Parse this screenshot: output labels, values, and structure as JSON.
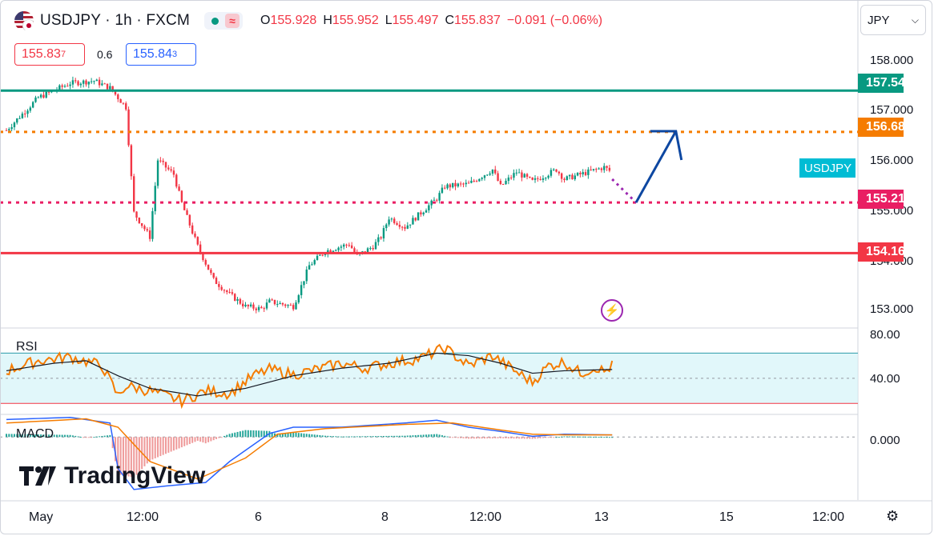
{
  "header": {
    "symbol": "USDJPY",
    "interval": "1h",
    "source": "FXCM",
    "open_label": "O",
    "open": "155.928",
    "high_label": "H",
    "high": "155.952",
    "low_label": "L",
    "low": "155.497",
    "close_label": "C",
    "close": "155.837",
    "change": "−0.091 (−0.06%)",
    "sell_price": "155.83",
    "sell_price_small": "7",
    "buy_price": "155.84",
    "buy_price_small": "3",
    "spread": "0.6",
    "currency": "JPY",
    "status_live": "market-open-dot",
    "status_icon": "≈"
  },
  "colors": {
    "up": "#089981",
    "down": "#f23645",
    "teal_level": "#089981",
    "orange_level": "#f57c00",
    "pink_level": "#e91e63",
    "red_level": "#f23645",
    "arrow": "#0d47a1",
    "rsi": "#f57c00",
    "rsi_band": "#d4f3f8"
  },
  "chart_data": [
    {
      "type": "candlestick",
      "title": "USDJPY · 1h · FXCM",
      "ylim": [
        152.6,
        158.6
      ],
      "y_ticks": [
        "158.000",
        "157.000",
        "156.000",
        "155.000",
        "154.000",
        "153.000"
      ],
      "x_ticks": [
        "May",
        "12:00",
        "6",
        "8",
        "12:00",
        "13",
        "15",
        "12:00"
      ],
      "close_path": [
        [
          0,
          156.72
        ],
        [
          4,
          157.4
        ],
        [
          8,
          157.7
        ],
        [
          11,
          157.75
        ],
        [
          13,
          157.6
        ],
        [
          15,
          157.2
        ],
        [
          16,
          155.0
        ],
        [
          18,
          154.5
        ],
        [
          19,
          156.1
        ],
        [
          21,
          155.8
        ],
        [
          22,
          155.2
        ],
        [
          24,
          154.3
        ],
        [
          26,
          153.6
        ],
        [
          28,
          153.3
        ],
        [
          30,
          153.05
        ],
        [
          32,
          153.0
        ],
        [
          33,
          153.15
        ],
        [
          36,
          153.05
        ],
        [
          38,
          153.9
        ],
        [
          40,
          154.2
        ],
        [
          43,
          154.35
        ],
        [
          44,
          154.1
        ],
        [
          46,
          154.3
        ],
        [
          47,
          154.5
        ],
        [
          48,
          154.9
        ],
        [
          50,
          154.7
        ],
        [
          52,
          155.0
        ],
        [
          54,
          155.3
        ],
        [
          55,
          155.55
        ],
        [
          58,
          155.6
        ],
        [
          61,
          155.9
        ],
        [
          62,
          155.55
        ],
        [
          64,
          155.85
        ],
        [
          66,
          155.65
        ],
        [
          69,
          155.9
        ],
        [
          70,
          155.7
        ],
        [
          73,
          155.85
        ],
        [
          75,
          155.95
        ],
        [
          76,
          155.84
        ]
      ],
      "levels": [
        {
          "name": "teal-level",
          "value": 157.545,
          "label": "157.545",
          "style": "solid"
        },
        {
          "name": "orange-level",
          "value": 156.685,
          "label": "156.685",
          "style": "dotted"
        },
        {
          "name": "pink-level",
          "value": 155.214,
          "label": "155.214",
          "style": "dotted"
        },
        {
          "name": "red-level",
          "value": 154.16,
          "label": "154.160",
          "style": "solid"
        }
      ],
      "symbol_tag": "USDJPY",
      "forecast": {
        "from": [
          76,
          155.7
        ],
        "via": [
          79,
          155.214
        ],
        "to": [
          84,
          156.7
        ],
        "to_tip": [
          85,
          156.1
        ]
      }
    },
    {
      "type": "line",
      "name": "RSI",
      "ylim": [
        20,
        90
      ],
      "y_ticks": [
        "80.00",
        "40.00"
      ],
      "band": [
        70,
        30
      ],
      "series_rsi": [
        [
          0,
          56
        ],
        [
          4,
          64
        ],
        [
          8,
          67
        ],
        [
          12,
          60
        ],
        [
          14,
          36
        ],
        [
          15,
          44
        ],
        [
          18,
          40
        ],
        [
          20,
          36
        ],
        [
          22,
          32
        ],
        [
          25,
          40
        ],
        [
          28,
          38
        ],
        [
          31,
          52
        ],
        [
          33,
          57
        ],
        [
          36,
          53
        ],
        [
          39,
          57
        ],
        [
          42,
          62
        ],
        [
          45,
          58
        ],
        [
          48,
          62
        ],
        [
          52,
          66
        ],
        [
          55,
          74
        ],
        [
          58,
          60
        ],
        [
          61,
          68
        ],
        [
          64,
          55
        ],
        [
          66,
          47
        ],
        [
          68,
          60
        ],
        [
          70,
          63
        ],
        [
          72,
          54
        ],
        [
          74,
          59
        ],
        [
          75,
          55
        ],
        [
          76,
          60
        ]
      ],
      "series_ma": [
        [
          0,
          56
        ],
        [
          6,
          62
        ],
        [
          10,
          64
        ],
        [
          14,
          52
        ],
        [
          18,
          42
        ],
        [
          24,
          36
        ],
        [
          30,
          42
        ],
        [
          36,
          52
        ],
        [
          42,
          58
        ],
        [
          48,
          62
        ],
        [
          54,
          70
        ],
        [
          58,
          68
        ],
        [
          62,
          62
        ],
        [
          66,
          54
        ],
        [
          70,
          56
        ],
        [
          76,
          57
        ]
      ]
    },
    {
      "type": "bar",
      "name": "MACD",
      "ylim": [
        -0.9,
        0.3
      ],
      "y_ticks": [
        "0.000"
      ],
      "series_macd": [
        [
          0,
          0.25
        ],
        [
          8,
          0.28
        ],
        [
          13,
          0.2
        ],
        [
          14,
          -0.45
        ],
        [
          16,
          -0.75
        ],
        [
          20,
          -0.7
        ],
        [
          25,
          -0.65
        ],
        [
          28,
          -0.35
        ],
        [
          33,
          0.05
        ],
        [
          36,
          0.14
        ],
        [
          42,
          0.14
        ],
        [
          50,
          0.2
        ],
        [
          54,
          0.24
        ],
        [
          58,
          0.14
        ],
        [
          62,
          0.08
        ],
        [
          66,
          0.01
        ],
        [
          70,
          0.04
        ],
        [
          76,
          0.03
        ]
      ],
      "series_signal": [
        [
          0,
          0.2
        ],
        [
          10,
          0.26
        ],
        [
          14,
          0.14
        ],
        [
          18,
          -0.35
        ],
        [
          24,
          -0.6
        ],
        [
          30,
          -0.3
        ],
        [
          34,
          0.04
        ],
        [
          40,
          0.12
        ],
        [
          50,
          0.18
        ],
        [
          56,
          0.2
        ],
        [
          62,
          0.1
        ],
        [
          66,
          0.04
        ],
        [
          70,
          0.03
        ],
        [
          76,
          0.03
        ]
      ]
    }
  ],
  "rsi_label": "RSI",
  "macd_label": "MACD",
  "branding": {
    "logo_mark": "TV",
    "wordmark": "TradingView"
  },
  "footer": {
    "settings_icon": "settings-icon"
  }
}
